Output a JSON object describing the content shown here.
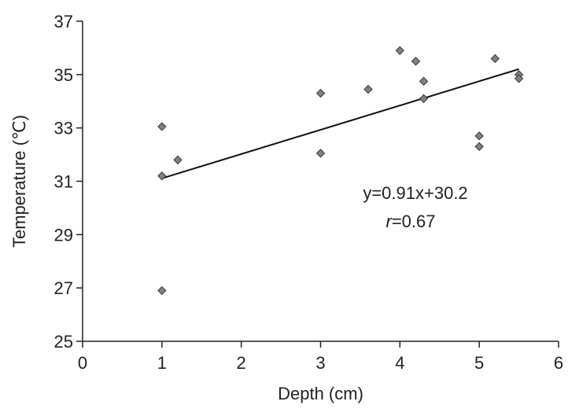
{
  "chart_data": {
    "type": "scatter",
    "title": "",
    "xlabel": "Depth (cm)",
    "ylabel": "Temperature (℃)",
    "xlim": [
      0,
      6
    ],
    "ylim": [
      25,
      37
    ],
    "xticks": [
      0,
      1,
      2,
      3,
      4,
      5,
      6
    ],
    "yticks": [
      25,
      27,
      29,
      31,
      33,
      35,
      37
    ],
    "grid": false,
    "legend": "none",
    "marker": "diamond",
    "marker_color": "#808080",
    "points": [
      {
        "x": 1.0,
        "y": 33.05
      },
      {
        "x": 1.0,
        "y": 31.2
      },
      {
        "x": 1.0,
        "y": 26.9
      },
      {
        "x": 1.2,
        "y": 31.8
      },
      {
        "x": 3.0,
        "y": 34.3
      },
      {
        "x": 3.0,
        "y": 32.05
      },
      {
        "x": 3.6,
        "y": 34.45
      },
      {
        "x": 4.0,
        "y": 35.9
      },
      {
        "x": 4.2,
        "y": 35.5
      },
      {
        "x": 4.3,
        "y": 34.75
      },
      {
        "x": 4.3,
        "y": 34.1
      },
      {
        "x": 5.0,
        "y": 32.7
      },
      {
        "x": 5.0,
        "y": 32.3
      },
      {
        "x": 5.2,
        "y": 35.6
      },
      {
        "x": 5.5,
        "y": 35.0
      },
      {
        "x": 5.5,
        "y": 34.85
      }
    ],
    "trendline": {
      "slope": 0.91,
      "intercept": 30.2,
      "x_range": [
        1.0,
        5.5
      ],
      "equation_text": "y=0.91x+30.2",
      "r_label": "r",
      "r_value_text": "=0.67"
    }
  }
}
